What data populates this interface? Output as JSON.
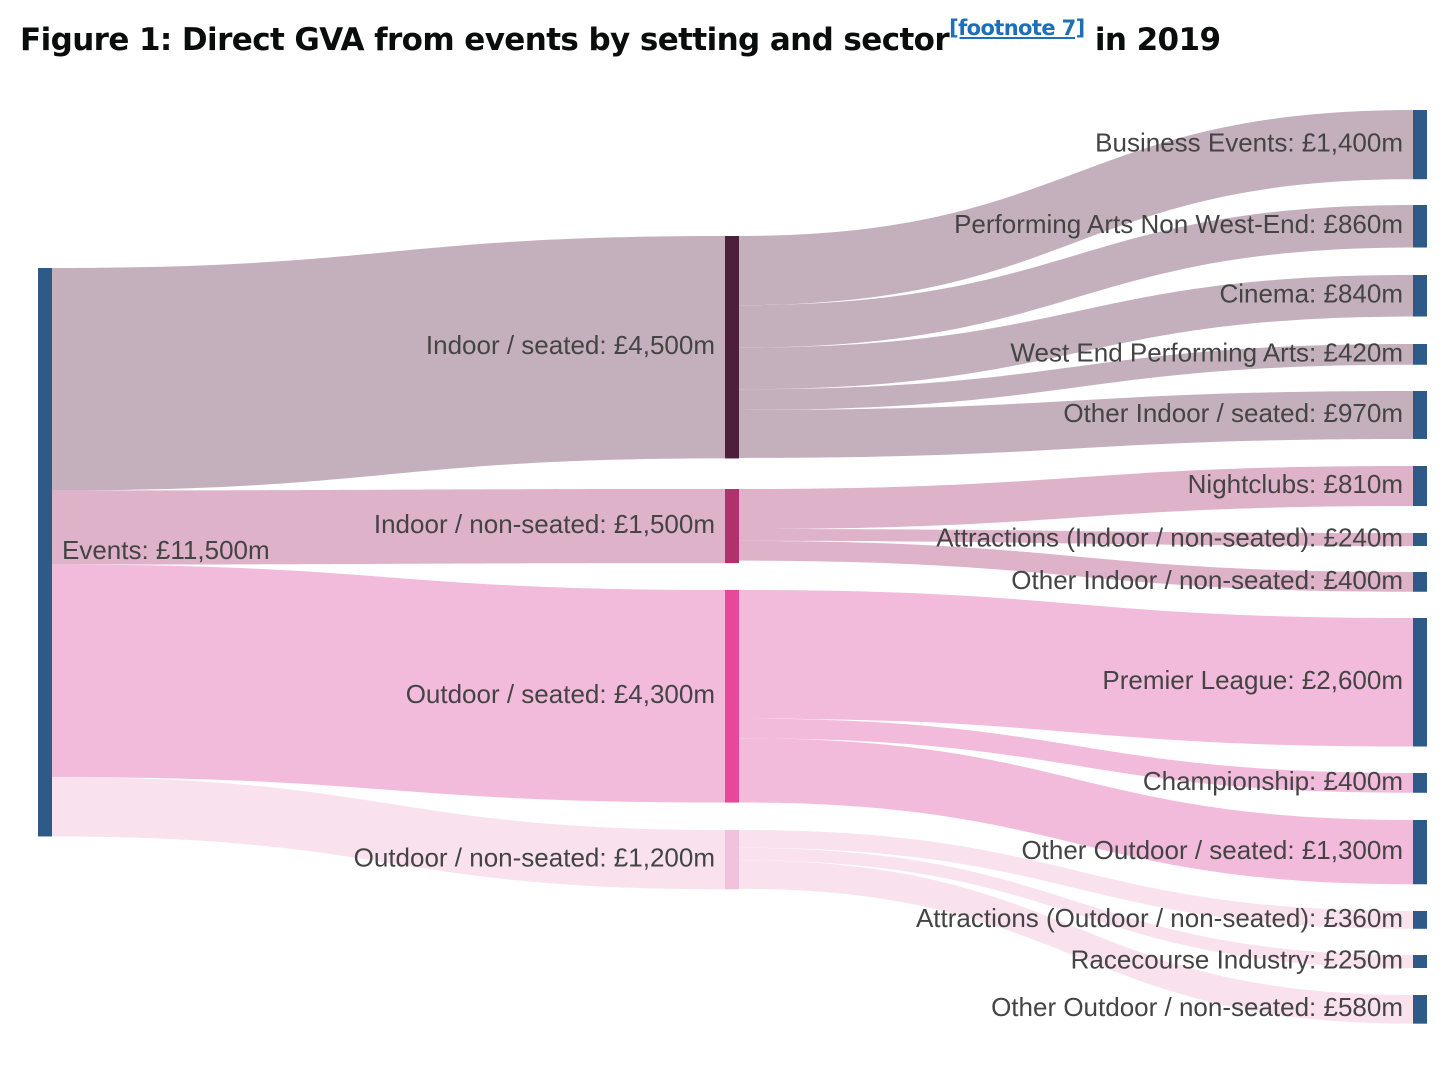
{
  "title": {
    "main": "Figure 1: Direct GVA from events by setting and sector",
    "footnote": "[footnote 7]",
    "suffix": " in 2019"
  },
  "colors": {
    "total": "#2e5a87",
    "indoor_seated": "#4d1f3d",
    "indoor_non_seated": "#b0326d",
    "outdoor_seated": "#e8489a",
    "outdoor_non_seated": "#f2c1dc",
    "sector": "#2e5a87",
    "link_indoor_seated": "#c4b0bd",
    "link_indoor_non_seated": "#deb2c9",
    "link_outdoor_seated": "#f2bbdb",
    "link_outdoor_non_seated": "#f9e2ee"
  },
  "chart_data": {
    "type": "sankey",
    "unit": "£m",
    "nodes": [
      {
        "id": "events",
        "label": "Events: £11,500m",
        "value": 11500,
        "color": "total"
      },
      {
        "id": "indoor_seated",
        "label": "Indoor / seated: £4,500m",
        "value": 4500,
        "color": "indoor_seated"
      },
      {
        "id": "indoor_non_seated",
        "label": "Indoor / non-seated: £1,500m",
        "value": 1500,
        "color": "indoor_non_seated"
      },
      {
        "id": "outdoor_seated",
        "label": "Outdoor / seated: £4,300m",
        "value": 4300,
        "color": "outdoor_seated"
      },
      {
        "id": "outdoor_non_seated",
        "label": "Outdoor / non-seated: £1,200m",
        "value": 1200,
        "color": "outdoor_non_seated"
      },
      {
        "id": "business_events",
        "label": "Business Events: £1,400m",
        "value": 1400,
        "color": "sector"
      },
      {
        "id": "pa_non_west_end",
        "label": "Performing Arts Non West-End: £860m",
        "value": 860,
        "color": "sector"
      },
      {
        "id": "cinema",
        "label": "Cinema: £840m",
        "value": 840,
        "color": "sector"
      },
      {
        "id": "west_end",
        "label": "West End Performing Arts: £420m",
        "value": 420,
        "color": "sector"
      },
      {
        "id": "other_indoor_seated",
        "label": "Other Indoor / seated: £970m",
        "value": 970,
        "color": "sector"
      },
      {
        "id": "nightclubs",
        "label": "Nightclubs: £810m",
        "value": 810,
        "color": "sector"
      },
      {
        "id": "attractions_indoor",
        "label": "Attractions (Indoor / non-seated): £240m",
        "value": 240,
        "color": "sector"
      },
      {
        "id": "other_indoor_non_seated",
        "label": "Other Indoor / non-seated: £400m",
        "value": 400,
        "color": "sector"
      },
      {
        "id": "premier_league",
        "label": "Premier League: £2,600m",
        "value": 2600,
        "color": "sector"
      },
      {
        "id": "championship",
        "label": "Championship: £400m",
        "value": 400,
        "color": "sector"
      },
      {
        "id": "other_outdoor_seated",
        "label": "Other Outdoor / seated: £1,300m",
        "value": 1300,
        "color": "sector"
      },
      {
        "id": "attractions_outdoor",
        "label": "Attractions (Outdoor / non-seated): £360m",
        "value": 360,
        "color": "sector"
      },
      {
        "id": "racecourse",
        "label": "Racecourse Industry: £250m",
        "value": 250,
        "color": "sector"
      },
      {
        "id": "other_outdoor_non_seated",
        "label": "Other Outdoor / non-seated: £580m",
        "value": 580,
        "color": "sector"
      }
    ],
    "links": [
      {
        "source": "events",
        "target": "indoor_seated",
        "value": 4500,
        "color": "link_indoor_seated"
      },
      {
        "source": "events",
        "target": "indoor_non_seated",
        "value": 1500,
        "color": "link_indoor_non_seated"
      },
      {
        "source": "events",
        "target": "outdoor_seated",
        "value": 4300,
        "color": "link_outdoor_seated"
      },
      {
        "source": "events",
        "target": "outdoor_non_seated",
        "value": 1200,
        "color": "link_outdoor_non_seated"
      },
      {
        "source": "indoor_seated",
        "target": "business_events",
        "value": 1400,
        "color": "link_indoor_seated"
      },
      {
        "source": "indoor_seated",
        "target": "pa_non_west_end",
        "value": 860,
        "color": "link_indoor_seated"
      },
      {
        "source": "indoor_seated",
        "target": "cinema",
        "value": 840,
        "color": "link_indoor_seated"
      },
      {
        "source": "indoor_seated",
        "target": "west_end",
        "value": 420,
        "color": "link_indoor_seated"
      },
      {
        "source": "indoor_seated",
        "target": "other_indoor_seated",
        "value": 970,
        "color": "link_indoor_seated"
      },
      {
        "source": "indoor_non_seated",
        "target": "nightclubs",
        "value": 810,
        "color": "link_indoor_non_seated"
      },
      {
        "source": "indoor_non_seated",
        "target": "attractions_indoor",
        "value": 240,
        "color": "link_indoor_non_seated"
      },
      {
        "source": "indoor_non_seated",
        "target": "other_indoor_non_seated",
        "value": 400,
        "color": "link_indoor_non_seated"
      },
      {
        "source": "outdoor_seated",
        "target": "premier_league",
        "value": 2600,
        "color": "link_outdoor_seated"
      },
      {
        "source": "outdoor_seated",
        "target": "championship",
        "value": 400,
        "color": "link_outdoor_seated"
      },
      {
        "source": "outdoor_seated",
        "target": "other_outdoor_seated",
        "value": 1300,
        "color": "link_outdoor_seated"
      },
      {
        "source": "outdoor_non_seated",
        "target": "attractions_outdoor",
        "value": 360,
        "color": "link_outdoor_non_seated"
      },
      {
        "source": "outdoor_non_seated",
        "target": "racecourse",
        "value": 250,
        "color": "link_outdoor_non_seated"
      },
      {
        "source": "outdoor_non_seated",
        "target": "other_outdoor_non_seated",
        "value": 580,
        "color": "link_outdoor_non_seated"
      }
    ]
  }
}
